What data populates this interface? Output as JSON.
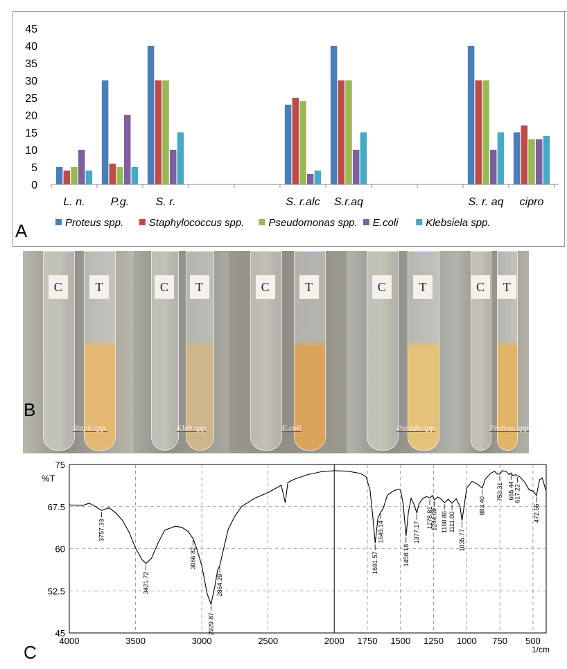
{
  "panel_labels": {
    "a": "A",
    "b": "B",
    "c": "C"
  },
  "colors": {
    "proteus": "#4a7ebb",
    "staph": "#be4b48",
    "pseudomonas": "#98b954",
    "ecoli": "#7d60a0",
    "klebsiela": "#46aac5"
  },
  "chart_data": [
    {
      "type": "bar",
      "categories": [
        "L. n.",
        "P.g.",
        "S. r.",
        "",
        "",
        "S. r.alc",
        "S.r.aq",
        "",
        "",
        "S. r. aq",
        "cipro"
      ],
      "ylim": [
        0,
        45
      ],
      "yticks": [
        0,
        5,
        10,
        15,
        20,
        25,
        30,
        35,
        40,
        45
      ],
      "series": [
        {
          "name": "Proteus spp.",
          "values": [
            5,
            30,
            40,
            null,
            null,
            23,
            40,
            null,
            null,
            40,
            15
          ]
        },
        {
          "name": "Staphylococcus spp.",
          "values": [
            4,
            6,
            30,
            null,
            null,
            25,
            30,
            null,
            null,
            30,
            17
          ]
        },
        {
          "name": "Pseudomonas spp.",
          "values": [
            5,
            5,
            30,
            null,
            null,
            24,
            30,
            null,
            null,
            30,
            13
          ]
        },
        {
          "name": "E.coli",
          "values": [
            10,
            20,
            10,
            null,
            null,
            3,
            10,
            null,
            null,
            10,
            13
          ]
        },
        {
          "name": "Klebsiela spp.",
          "values": [
            4,
            5,
            15,
            null,
            null,
            4,
            15,
            null,
            null,
            15,
            14
          ]
        }
      ],
      "legend_position": "bottom",
      "grid": false
    },
    {
      "type": "line",
      "ylabel": "%T",
      "xlabel": "1/cm",
      "xlim": [
        4000,
        400
      ],
      "ylim": [
        45,
        75
      ],
      "xticks": [
        4000,
        3500,
        3000,
        2500,
        2000,
        1750,
        1500,
        1250,
        1000,
        750,
        500
      ],
      "yticks": [
        45,
        52.5,
        60,
        67.5,
        75
      ],
      "grid": true,
      "x": [
        4000,
        3900,
        3850,
        3800,
        3757,
        3700,
        3650,
        3600,
        3550,
        3500,
        3450,
        3421,
        3380,
        3330,
        3280,
        3200,
        3150,
        3100,
        3066,
        3040,
        3000,
        2960,
        2930,
        2900,
        2880,
        2864,
        2840,
        2800,
        2750,
        2700,
        2600,
        2500,
        2400,
        2370,
        2350,
        2300,
        2200,
        2100,
        2000,
        1900,
        1850,
        1800,
        1760,
        1730,
        1710,
        1691,
        1670,
        1649,
        1630,
        1600,
        1560,
        1520,
        1500,
        1480,
        1458,
        1440,
        1420,
        1400,
        1377,
        1360,
        1330,
        1300,
        1278,
        1260,
        1244,
        1220,
        1200,
        1168,
        1140,
        1111,
        1080,
        1050,
        1036,
        1020,
        1000,
        960,
        920,
        883,
        860,
        820,
        790,
        770,
        750,
        730,
        700,
        680,
        665,
        650,
        630,
        617,
        600,
        560,
        530,
        500,
        473,
        450,
        430,
        410,
        400
      ],
      "y": [
        67.8,
        67.7,
        68.1,
        67.5,
        66.8,
        67.3,
        66.4,
        65.1,
        63.0,
        60.1,
        58.0,
        57.4,
        58.3,
        61.0,
        63.3,
        64.0,
        63.8,
        63.0,
        61.8,
        60.1,
        57.0,
        52.0,
        50.1,
        53.5,
        56.2,
        57.0,
        59.5,
        63.5,
        65.8,
        67.5,
        69.0,
        70.0,
        71.3,
        68.2,
        71.8,
        72.4,
        73.2,
        73.7,
        73.9,
        73.8,
        73.6,
        73.4,
        72.8,
        70.5,
        66.0,
        61.0,
        65.5,
        66.5,
        67.2,
        69.5,
        70.2,
        70.6,
        70.5,
        68.0,
        62.3,
        66.5,
        69.0,
        68.0,
        66.4,
        68.0,
        69.0,
        69.3,
        69.0,
        69.5,
        68.7,
        69.2,
        69.0,
        68.2,
        68.8,
        68.1,
        68.9,
        67.5,
        65.0,
        67.5,
        70.8,
        72.0,
        71.5,
        70.8,
        72.4,
        73.4,
        73.8,
        73.3,
        73.3,
        73.9,
        73.7,
        73.2,
        73.5,
        73.0,
        73.2,
        73.0,
        72.8,
        71.8,
        70.5,
        70.3,
        69.5,
        72.3,
        72.6,
        71.0,
        70.3
      ],
      "peak_labels": [
        "3757.33",
        "3421.72",
        "3066.82",
        "2929.87",
        "2864.29",
        "1691.57",
        "1649.14",
        "1458.18",
        "1377.17",
        "1278.81",
        "1244.09",
        "1168.86",
        "1111.00",
        "1035.77",
        "883.40",
        "750.31",
        "665.44",
        "617.22",
        "472.56"
      ],
      "peak_x": [
        3757.33,
        3421.72,
        3066.82,
        2929.87,
        2864.29,
        1691.57,
        1649.14,
        1458.18,
        1377.17,
        1278.81,
        1244.09,
        1168.86,
        1111.0,
        1035.77,
        883.4,
        750.31,
        665.44,
        617.22,
        472.56
      ],
      "peak_y": [
        66.8,
        57.4,
        61.8,
        50.1,
        57.0,
        61.0,
        66.5,
        62.3,
        66.4,
        69.0,
        68.7,
        68.2,
        68.1,
        65.0,
        70.8,
        73.3,
        73.5,
        73.0,
        69.5
      ]
    }
  ],
  "photos": [
    {
      "caption": "Staph.spp.",
      "c_tag": "C",
      "t_tag": "T",
      "tube_color": "#e2b872"
    },
    {
      "caption": "Kleb.spp",
      "c_tag": "C",
      "t_tag": "T",
      "tube_color": "#cfb58a"
    },
    {
      "caption": "E.coli",
      "c_tag": "C",
      "t_tag": "T",
      "tube_color": "#d9a45a"
    },
    {
      "caption": "Pseudo.spp",
      "c_tag": "C",
      "t_tag": "T",
      "tube_color": "#e4c279"
    },
    {
      "caption": "Proteus.spp.",
      "c_tag": "C",
      "t_tag": "T",
      "tube_color": "#e0b466"
    }
  ]
}
